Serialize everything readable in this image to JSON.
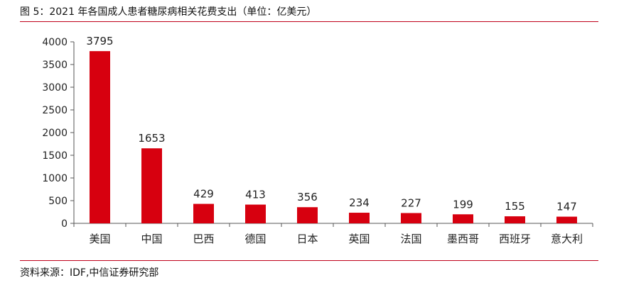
{
  "header": {
    "title": "图 5：2021 年各国成人患者糖尿病相关花费支出（单位：亿美元）"
  },
  "footer": {
    "source": "资料来源：IDF,中信证券研究部"
  },
  "colors": {
    "bar": "#d7000f",
    "rule": "#c0001a"
  },
  "chart_data": {
    "type": "bar",
    "title": "图 5：2021 年各国成人患者糖尿病相关花费支出（单位：亿美元）",
    "xlabel": "",
    "ylabel": "",
    "categories": [
      "美国",
      "中国",
      "巴西",
      "德国",
      "日本",
      "英国",
      "法国",
      "墨西哥",
      "西班牙",
      "意大利"
    ],
    "values": [
      3795,
      1653,
      429,
      413,
      356,
      234,
      227,
      199,
      155,
      147
    ],
    "ylim": [
      0,
      4000
    ],
    "yticks": [
      0,
      500,
      1000,
      1500,
      2000,
      2500,
      3000,
      3500,
      4000
    ],
    "grid": false,
    "legend": "none",
    "data_labels": true
  }
}
